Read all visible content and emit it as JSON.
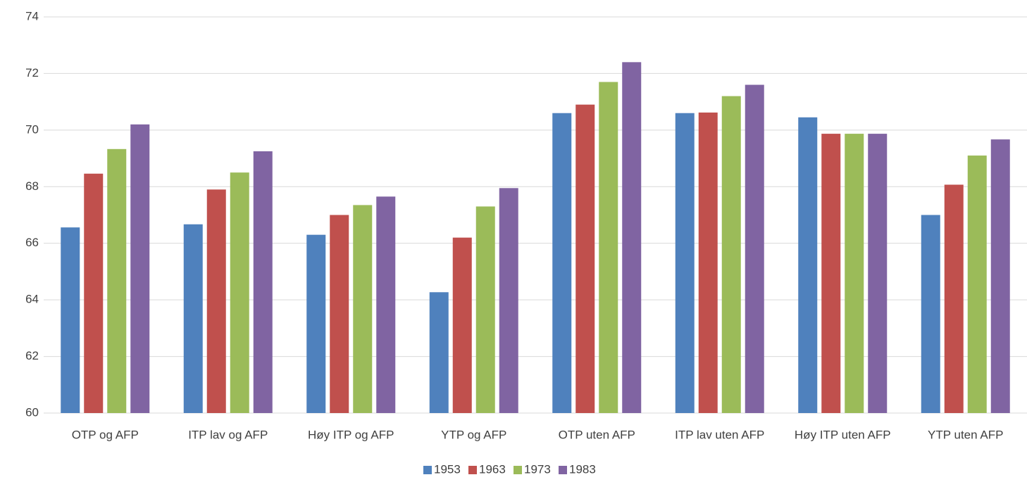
{
  "chart_data": {
    "type": "bar",
    "categories": [
      "OTP og AFP",
      "ITP lav og AFP",
      "Høy ITP og AFP",
      "YTP og AFP",
      "OTP uten AFP",
      "ITP lav uten AFP",
      "Høy ITP uten AFP",
      "YTP uten AFP"
    ],
    "series": [
      {
        "name": "1953",
        "color": "#4f81bd",
        "values": [
          66.56,
          66.67,
          66.3,
          64.27,
          70.6,
          70.6,
          70.45,
          67.0
        ]
      },
      {
        "name": "1963",
        "color": "#c0504d",
        "values": [
          68.46,
          67.9,
          67.0,
          66.2,
          70.9,
          70.62,
          69.87,
          68.07
        ]
      },
      {
        "name": "1973",
        "color": "#9bbb59",
        "values": [
          69.33,
          68.5,
          67.35,
          67.3,
          71.7,
          71.2,
          69.87,
          69.1
        ]
      },
      {
        "name": "1983",
        "color": "#8064a2",
        "values": [
          70.2,
          69.25,
          67.65,
          67.95,
          72.4,
          71.6,
          69.87,
          69.67
        ]
      }
    ],
    "ylim": [
      60,
      74
    ],
    "yticks": [
      60,
      62,
      64,
      66,
      68,
      70,
      72,
      74
    ],
    "grid": true,
    "legend": "bottom"
  }
}
